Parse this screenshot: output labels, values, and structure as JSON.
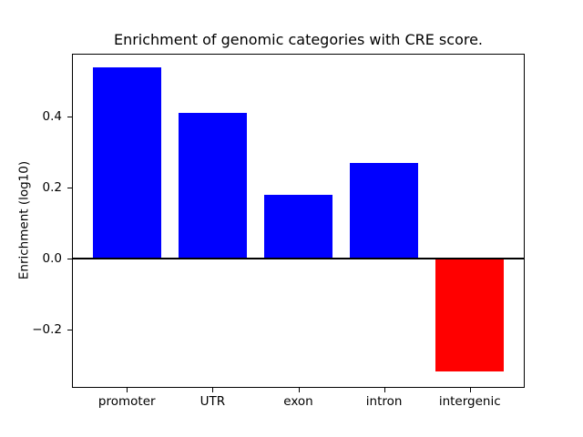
{
  "figure": {
    "background": "#ffffff",
    "text_color": "#000000",
    "axis_color": "#000000"
  },
  "chart_data": {
    "type": "bar",
    "title": "Enrichment of genomic categories with CRE score.",
    "xlabel": "",
    "ylabel": "Enrichment (log10)",
    "categories": [
      "promoter",
      "UTR",
      "exon",
      "intron",
      "intergenic"
    ],
    "values": [
      0.54,
      0.41,
      0.18,
      0.27,
      -0.32
    ],
    "bar_colors": [
      "#0000ff",
      "#0000ff",
      "#0000ff",
      "#0000ff",
      "#ff0000"
    ],
    "positive_color": "#0000ff",
    "negative_color": "#ff0000",
    "bar_width_fraction": 0.8,
    "xlim": [
      -0.64,
      4.64
    ],
    "ylim": [
      -0.365,
      0.578
    ],
    "yticks": [
      {
        "value": -0.2,
        "label": "−0.2"
      },
      {
        "value": 0.0,
        "label": "0.0"
      },
      {
        "value": 0.2,
        "label": "0.2"
      },
      {
        "value": 0.4,
        "label": "0.4"
      }
    ],
    "zero_line": true,
    "grid": false,
    "legend": null
  }
}
